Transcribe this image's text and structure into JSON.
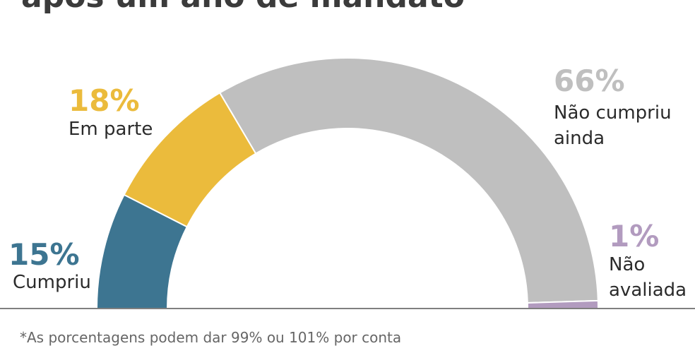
{
  "title": "após um ano de mandato",
  "chart_data": {
    "type": "pie",
    "variant": "semicircle",
    "title": "após um ano de mandato",
    "slices": [
      {
        "pct_label": "15%",
        "label": "Cumpriu",
        "value": 15,
        "color": "#3d7591"
      },
      {
        "pct_label": "18%",
        "label": "Em parte",
        "value": 18,
        "color": "#ebbb3c"
      },
      {
        "pct_label": "66%",
        "label": "Não cumpriu ainda",
        "label_lines": [
          "Não cumpriu",
          "ainda"
        ],
        "value": 66,
        "color": "#bfbfbf"
      },
      {
        "pct_label": "1%",
        "label": "Não avaliada",
        "label_lines": [
          "Não",
          "avaliada"
        ],
        "value": 1,
        "color": "#b29bbf"
      }
    ],
    "footnote": "*As porcentagens podem dar 99% ou 101% por conta"
  }
}
